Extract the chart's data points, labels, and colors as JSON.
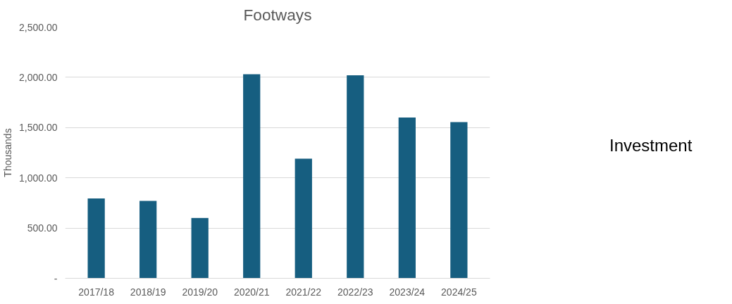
{
  "chart_data": {
    "type": "bar",
    "title": "Footways",
    "ylabel": "Thousands",
    "categories": [
      "2017/18",
      "2018/19",
      "2019/20",
      "2020/21",
      "2021/22",
      "2022/23",
      "2023/24",
      "2024/25"
    ],
    "values": [
      795,
      770,
      600,
      2030,
      1190,
      2020,
      1600,
      1555
    ],
    "color": "#165e80",
    "ylim": [
      0,
      2500
    ],
    "yticks": [
      {
        "value": 0,
        "label": "-"
      },
      {
        "value": 500,
        "label": "500.00"
      },
      {
        "value": 1000,
        "label": "1,000.00"
      },
      {
        "value": 1500,
        "label": "1,500.00"
      },
      {
        "value": 2000,
        "label": "2,000.00"
      },
      {
        "value": 2500,
        "label": "2,500.00"
      }
    ],
    "grid": "y",
    "annotations": [
      "Investment"
    ]
  }
}
